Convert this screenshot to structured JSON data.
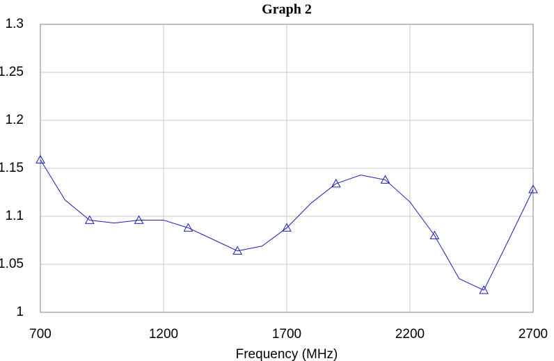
{
  "chart_data": {
    "type": "line",
    "title": "Graph 2",
    "x_label": "Frequency (MHz)",
    "x": [
      700,
      800,
      900,
      1000,
      1100,
      1200,
      1300,
      1400,
      1500,
      1600,
      1700,
      1800,
      1900,
      2000,
      2100,
      2200,
      2300,
      2400,
      2500,
      2600,
      2700
    ],
    "series": [
      {
        "name": "Graph 2",
        "color": "#1a1ab8",
        "marker": "triangle",
        "marker_step": 2,
        "values": [
          1.159,
          1.117,
          1.096,
          1.093,
          1.096,
          1.096,
          1.088,
          1.076,
          1.064,
          1.069,
          1.088,
          1.114,
          1.134,
          1.143,
          1.138,
          1.115,
          1.08,
          1.035,
          1.023,
          1.075,
          1.128
        ]
      }
    ],
    "xlim": [
      700,
      2700
    ],
    "xticks": [
      700,
      1200,
      1700,
      2200,
      2700
    ],
    "ylim": [
      1,
      1.3
    ],
    "yticks": [
      1,
      1.05,
      1.1,
      1.15,
      1.2,
      1.25,
      1.3
    ],
    "grid": true
  }
}
